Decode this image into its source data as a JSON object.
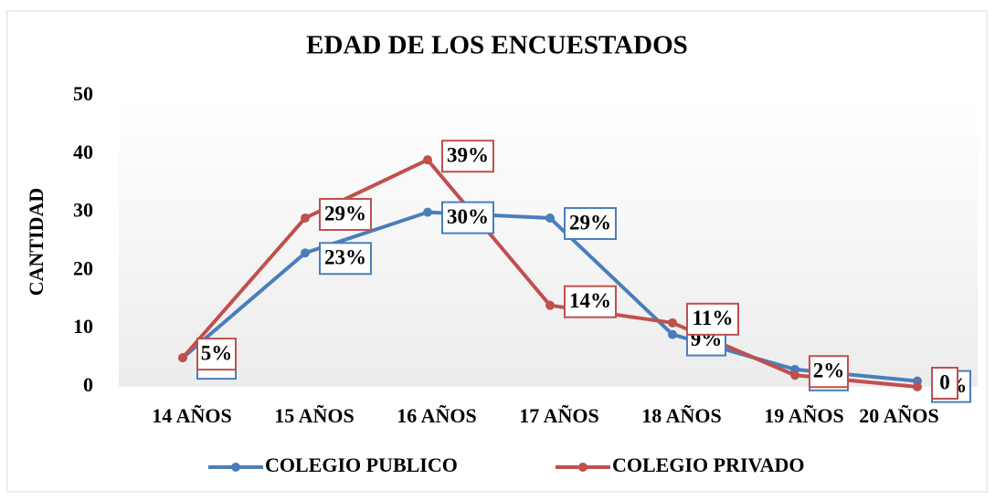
{
  "chart_data": {
    "type": "line",
    "title": "EDAD DE LOS ENCUESTADOS",
    "y_label": "CANTIDAD",
    "categories": [
      "14 AÑOS",
      "15 AÑOS",
      "16 AÑOS",
      "17 AÑOS",
      "18 AÑOS",
      "19 AÑOS",
      "20 AÑOS"
    ],
    "series": [
      {
        "name": "COLEGIO PUBLICO",
        "color": "#4a7ebb",
        "values": [
          5,
          23,
          30,
          29,
          9,
          3,
          1
        ],
        "value_labels": [
          "5%",
          "23%",
          "30%",
          "29%",
          "9%",
          "3%",
          "1%"
        ]
      },
      {
        "name": "COLEGIO PRIVADO",
        "color": "#c0504d",
        "values": [
          5,
          29,
          39,
          14,
          11,
          2,
          0
        ],
        "value_labels": [
          "5%",
          "29%",
          "39%",
          "14%",
          "11%",
          "2%",
          "0"
        ]
      }
    ],
    "ylim": [
      0,
      50
    ],
    "yticks": [
      0,
      10,
      20,
      30,
      40,
      50
    ],
    "grid": false,
    "legend": "bottom"
  }
}
